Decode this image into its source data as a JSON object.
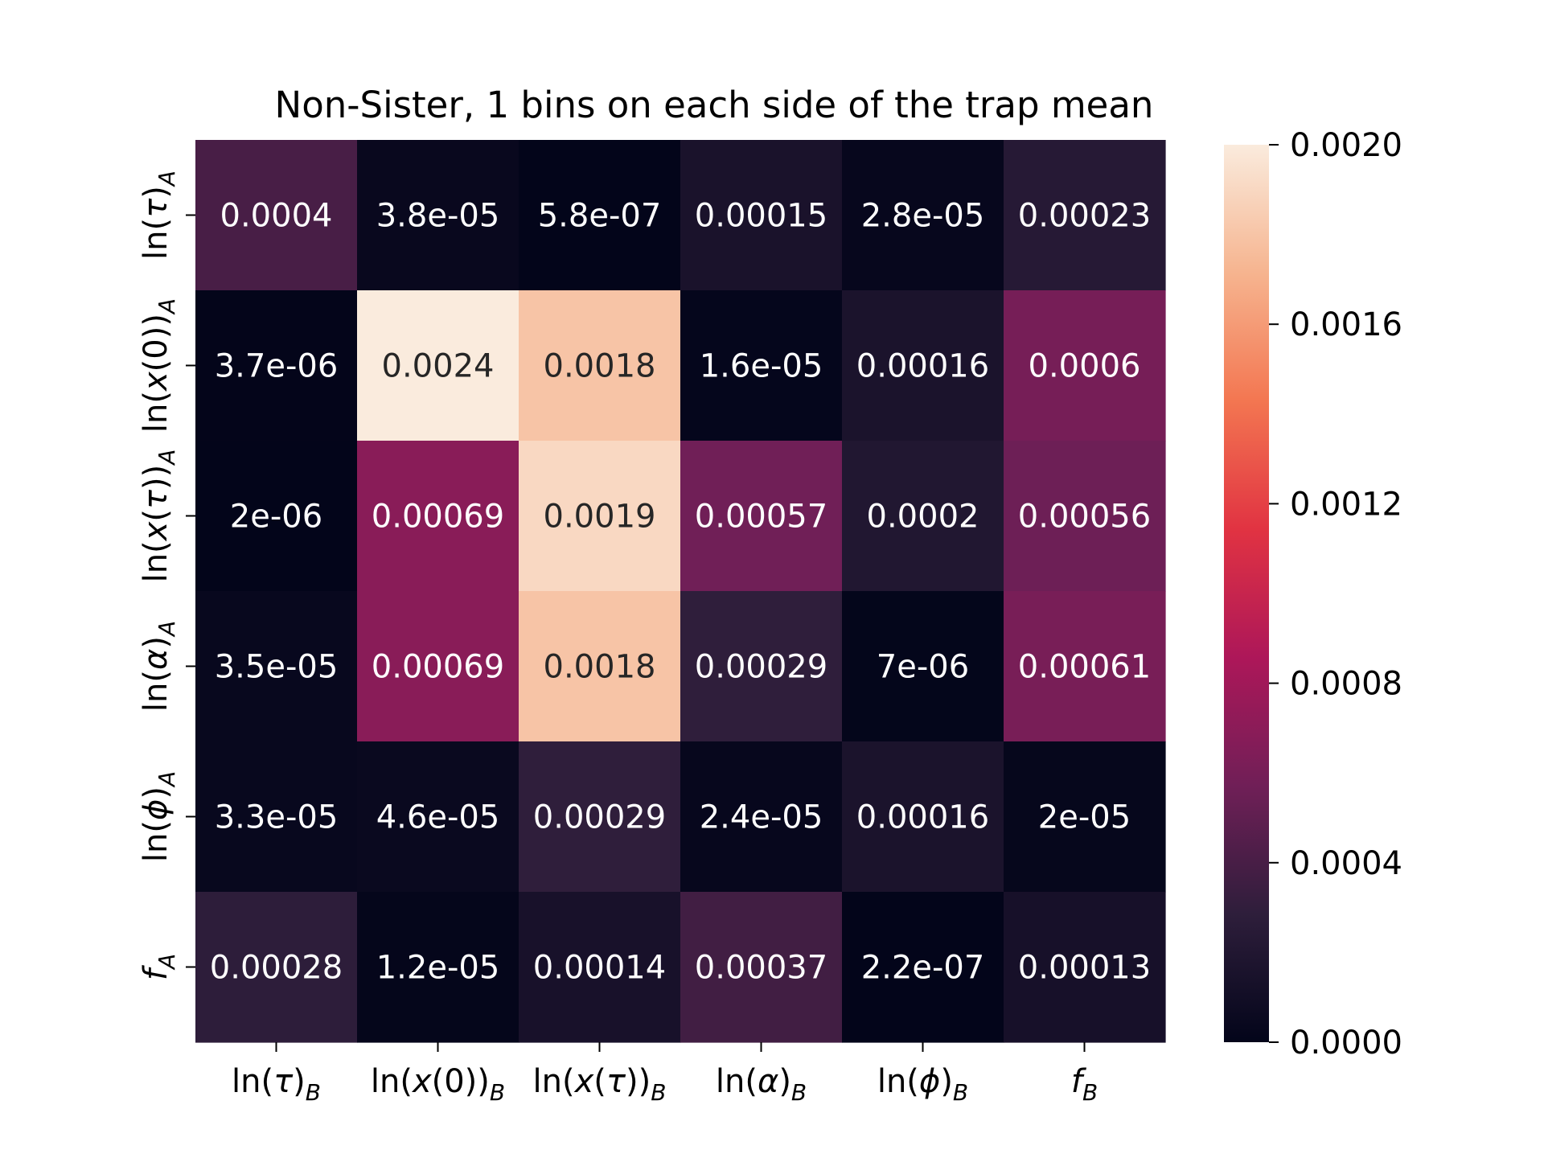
{
  "chart_data": {
    "type": "heatmap",
    "title": "Non-Sister, 1 bins on each side of the trap mean",
    "x_labels": [
      {
        "segments": [
          {
            "t": "ln("
          },
          {
            "t": "τ",
            "i": true
          },
          {
            "t": ")"
          }
        ],
        "sub": "B"
      },
      {
        "segments": [
          {
            "t": "ln("
          },
          {
            "t": "x",
            "i": true
          },
          {
            "t": "(0))"
          }
        ],
        "sub": "B"
      },
      {
        "segments": [
          {
            "t": "ln("
          },
          {
            "t": "x",
            "i": true
          },
          {
            "t": "("
          },
          {
            "t": "τ",
            "i": true
          },
          {
            "t": "))"
          }
        ],
        "sub": "B"
      },
      {
        "segments": [
          {
            "t": "ln("
          },
          {
            "t": "α",
            "i": true
          },
          {
            "t": ")"
          }
        ],
        "sub": "B"
      },
      {
        "segments": [
          {
            "t": "ln("
          },
          {
            "t": "ϕ",
            "i": true
          },
          {
            "t": ")"
          }
        ],
        "sub": "B"
      },
      {
        "segments": [
          {
            "t": "f",
            "i": true
          }
        ],
        "sub": "B"
      }
    ],
    "y_labels": [
      {
        "segments": [
          {
            "t": "ln("
          },
          {
            "t": "τ",
            "i": true
          },
          {
            "t": ")"
          }
        ],
        "sub": "A"
      },
      {
        "segments": [
          {
            "t": "ln("
          },
          {
            "t": "x",
            "i": true
          },
          {
            "t": "(0))"
          }
        ],
        "sub": "A"
      },
      {
        "segments": [
          {
            "t": "ln("
          },
          {
            "t": "x",
            "i": true
          },
          {
            "t": "("
          },
          {
            "t": "τ",
            "i": true
          },
          {
            "t": "))"
          }
        ],
        "sub": "A"
      },
      {
        "segments": [
          {
            "t": "ln("
          },
          {
            "t": "α",
            "i": true
          },
          {
            "t": ")"
          }
        ],
        "sub": "A"
      },
      {
        "segments": [
          {
            "t": "ln("
          },
          {
            "t": "ϕ",
            "i": true
          },
          {
            "t": ")"
          }
        ],
        "sub": "A"
      },
      {
        "segments": [
          {
            "t": "f",
            "i": true
          }
        ],
        "sub": "A"
      }
    ],
    "values": [
      [
        0.0004,
        3.8e-05,
        5.8e-07,
        0.00015,
        2.8e-05,
        0.00023
      ],
      [
        3.7e-06,
        0.0024,
        0.0018,
        1.6e-05,
        0.00016,
        0.0006
      ],
      [
        2e-06,
        0.00069,
        0.0019,
        0.00057,
        0.0002,
        0.00056
      ],
      [
        3.5e-05,
        0.00069,
        0.0018,
        0.00029,
        7e-06,
        0.00061
      ],
      [
        3.3e-05,
        4.6e-05,
        0.00029,
        2.4e-05,
        0.00016,
        2e-05
      ],
      [
        0.00028,
        1.2e-05,
        0.00014,
        0.00037,
        2.2e-07,
        0.00013
      ]
    ],
    "value_labels": [
      [
        "0.0004",
        "3.8e-05",
        "5.8e-07",
        "0.00015",
        "2.8e-05",
        "0.00023"
      ],
      [
        "3.7e-06",
        "0.0024",
        "0.0018",
        "1.6e-05",
        "0.00016",
        "0.0006"
      ],
      [
        "2e-06",
        "0.00069",
        "0.0019",
        "0.00057",
        "0.0002",
        "0.00056"
      ],
      [
        "3.5e-05",
        "0.00069",
        "0.0018",
        "0.00029",
        "7e-06",
        "0.00061"
      ],
      [
        "3.3e-05",
        "4.6e-05",
        "0.00029",
        "2.4e-05",
        "0.00016",
        "2e-05"
      ],
      [
        "0.00028",
        "1.2e-05",
        "0.00014",
        "0.00037",
        "2.2e-07",
        "0.00013"
      ]
    ],
    "colorbar": {
      "vmin": 0.0,
      "vmax": 0.002,
      "ticks": [
        0.0,
        0.0004,
        0.0008,
        0.0012,
        0.0016,
        0.002
      ],
      "tick_labels": [
        "0.0000",
        "0.0004",
        "0.0008",
        "0.0012",
        "0.0016",
        "0.0020"
      ],
      "colormap": "rocket",
      "stops": [
        "#03051a",
        "#2e1e3b",
        "#701f57",
        "#ad1759",
        "#e13342",
        "#f37651",
        "#f6b48f",
        "#faebdd"
      ]
    },
    "annotation_colors": {
      "dark_bg": "#ffffff",
      "light_bg": "#262626"
    }
  }
}
